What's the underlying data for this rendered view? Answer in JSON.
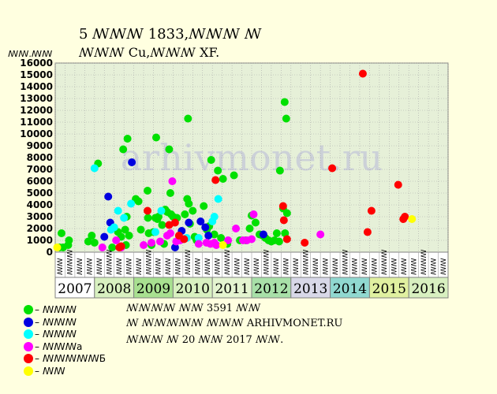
{
  "title": {
    "line1": "5 ꟿꟿꟿ 1833,ꟿꟿꟿ ꟿ",
    "line2": "ꟿꟿꟿ Cu,ꟿꟿꟿ XF."
  },
  "watermark": "arhivmonet.ru",
  "info": {
    "line1": "ꟿꟿꟿꟿ ꟿꟿ 3591 ꟿꟿ",
    "line2": "ꟿ ꟿꟿꟿꟿꟿ ꟿꟿꟿ ARHIVMONET.RU",
    "line3": "ꟿꟿꟿ ꟿ 20 ꟿꟿ 2017 ꟿꟿ."
  },
  "chart_data": {
    "type": "scatter",
    "ylabel": "ꟿꟿ.ꟿꟿ",
    "ylim": [
      0,
      16000
    ],
    "yticks": [
      0,
      1000,
      2000,
      3000,
      4000,
      5000,
      6000,
      7000,
      8000,
      9000,
      10000,
      11000,
      12000,
      13000,
      14000,
      15000,
      16000
    ],
    "grid": true,
    "legend_position": "bottom-left",
    "colors": {
      "plot_background": "#e6f0d8",
      "page_background": "#ffffe0",
      "grid": "#a8a8a8"
    },
    "quarter_labels": [
      "ꟿꟿ",
      "ꟿꟿꟿ",
      "ꟿꟿ",
      "ꟿꟿ"
    ],
    "years": [
      {
        "label": "2007",
        "color": "#ffffff"
      },
      {
        "label": "2008",
        "color": "#d8f0c0"
      },
      {
        "label": "2009",
        "color": "#a8e090"
      },
      {
        "label": "2010",
        "color": "#d8f0c0"
      },
      {
        "label": "2011",
        "color": "#e4f4d0"
      },
      {
        "label": "2012",
        "color": "#a8e0a8"
      },
      {
        "label": "2013",
        "color": "#d8d8e8"
      },
      {
        "label": "2014",
        "color": "#90d8d0"
      },
      {
        "label": "2015",
        "color": "#e0f0a0"
      },
      {
        "label": "2016",
        "color": "#d8f0c0"
      }
    ],
    "series": [
      {
        "name": "ꟿ ꟿꟿꟿ",
        "color": "#00e000",
        "points": [
          [
            2007.11,
            400
          ],
          [
            2007.16,
            1600
          ],
          [
            2007.2,
            400
          ],
          [
            2007.33,
            600
          ],
          [
            2007.35,
            1000
          ],
          [
            2007.84,
            900
          ],
          [
            2007.93,
            1400
          ],
          [
            2008.0,
            800
          ],
          [
            2008.09,
            7500
          ],
          [
            2008.45,
            400
          ],
          [
            2008.6,
            1700
          ],
          [
            2008.68,
            1300
          ],
          [
            2008.73,
            8700
          ],
          [
            2008.78,
            1900
          ],
          [
            2008.82,
            3000
          ],
          [
            2008.84,
            9600
          ],
          [
            2008.88,
            1400
          ],
          [
            2008.8,
            600
          ],
          [
            2009.05,
            4500
          ],
          [
            2009.12,
            4300
          ],
          [
            2009.18,
            1900
          ],
          [
            2009.35,
            5200
          ],
          [
            2009.36,
            2900
          ],
          [
            2009.38,
            1600
          ],
          [
            2009.45,
            600
          ],
          [
            2009.5,
            1700
          ],
          [
            2009.55,
            2900
          ],
          [
            2009.57,
            9700
          ],
          [
            2009.6,
            2800
          ],
          [
            2009.63,
            3000
          ],
          [
            2009.72,
            2300
          ],
          [
            2009.77,
            700
          ],
          [
            2009.8,
            3600
          ],
          [
            2009.85,
            3400
          ],
          [
            2009.9,
            8700
          ],
          [
            2009.93,
            5000
          ],
          [
            2009.95,
            3200
          ],
          [
            2010.0,
            3000
          ],
          [
            2010.1,
            2900
          ],
          [
            2010.3,
            3200
          ],
          [
            2010.36,
            4500
          ],
          [
            2010.38,
            11300
          ],
          [
            2010.4,
            4100
          ],
          [
            2010.43,
            2400
          ],
          [
            2010.5,
            3500
          ],
          [
            2010.55,
            1300
          ],
          [
            2010.6,
            1000
          ],
          [
            2010.78,
            3900
          ],
          [
            2010.86,
            1900
          ],
          [
            2010.92,
            2200
          ],
          [
            2010.97,
            7800
          ],
          [
            2011.05,
            1500
          ],
          [
            2011.14,
            6900
          ],
          [
            2011.22,
            1200
          ],
          [
            2011.27,
            6200
          ],
          [
            2011.38,
            700
          ],
          [
            2011.55,
            6500
          ],
          [
            2011.7,
            1000
          ],
          [
            2011.85,
            1000
          ],
          [
            2011.95,
            2000
          ],
          [
            2012.0,
            3100
          ],
          [
            2012.1,
            2500
          ],
          [
            2012.2,
            1500
          ],
          [
            2012.28,
            1400
          ],
          [
            2012.35,
            1200
          ],
          [
            2012.43,
            1000
          ],
          [
            2012.5,
            900
          ],
          [
            2012.58,
            1000
          ],
          [
            2012.64,
            1600
          ],
          [
            2012.7,
            900
          ],
          [
            2012.72,
            6900
          ],
          [
            2012.8,
            3700
          ],
          [
            2012.84,
            12700
          ],
          [
            2012.88,
            11300
          ],
          [
            2012.9,
            3300
          ],
          [
            2012.85,
            1600
          ]
        ]
      },
      {
        "name": "ꟿ ꟿꟿꟿ",
        "color": "#0000e0",
        "points": [
          [
            2008.25,
            1300
          ],
          [
            2008.35,
            4700
          ],
          [
            2008.4,
            2500
          ],
          [
            2008.95,
            7600
          ],
          [
            2010.05,
            400
          ],
          [
            2010.22,
            1800
          ],
          [
            2010.4,
            2500
          ],
          [
            2010.7,
            2600
          ],
          [
            2010.82,
            2100
          ],
          [
            2010.9,
            1400
          ],
          [
            2012.3,
            1500
          ]
        ]
      },
      {
        "name": "ꟿ ꟿꟿꟿ",
        "color": "#00ffff",
        "points": [
          [
            2008.0,
            7100
          ],
          [
            2008.42,
            1900
          ],
          [
            2008.5,
            2100
          ],
          [
            2008.6,
            3500
          ],
          [
            2008.75,
            2900
          ],
          [
            2008.93,
            4100
          ],
          [
            2009.55,
            1700
          ],
          [
            2009.7,
            3500
          ],
          [
            2010.35,
            1200
          ],
          [
            2010.65,
            1200
          ],
          [
            2011.0,
            2600
          ],
          [
            2011.05,
            3000
          ],
          [
            2011.15,
            4500
          ]
        ]
      },
      {
        "name": "ꟿ ꟿꟿꟿa",
        "color": "#ff00ff",
        "points": [
          [
            2008.2,
            400
          ],
          [
            2008.55,
            1000
          ],
          [
            2008.68,
            400
          ],
          [
            2009.25,
            600
          ],
          [
            2009.45,
            800
          ],
          [
            2009.67,
            900
          ],
          [
            2009.85,
            1400
          ],
          [
            2009.93,
            1600
          ],
          [
            2009.98,
            6000
          ],
          [
            2010.08,
            900
          ],
          [
            2010.18,
            1000
          ],
          [
            2010.65,
            700
          ],
          [
            2010.85,
            800
          ],
          [
            2010.95,
            700
          ],
          [
            2011.05,
            800
          ],
          [
            2011.1,
            600
          ],
          [
            2011.4,
            1000
          ],
          [
            2011.6,
            2000
          ],
          [
            2011.78,
            1000
          ],
          [
            2011.88,
            1000
          ],
          [
            2012.0,
            1100
          ],
          [
            2012.05,
            3200
          ],
          [
            2013.75,
            1500
          ]
        ]
      },
      {
        "name": "ꟿ ꟿꟿꟿꟿꟿБ",
        "color": "#ff0000",
        "points": [
          [
            2008.63,
            400
          ],
          [
            2008.68,
            500
          ],
          [
            2009.35,
            3500
          ],
          [
            2009.9,
            2300
          ],
          [
            2010.05,
            2500
          ],
          [
            2010.15,
            1400
          ],
          [
            2010.28,
            1100
          ],
          [
            2011.08,
            6100
          ],
          [
            2012.8,
            3900
          ],
          [
            2012.82,
            2700
          ],
          [
            2012.9,
            1100
          ],
          [
            2013.35,
            800
          ],
          [
            2014.05,
            7100
          ],
          [
            2014.83,
            15100
          ],
          [
            2014.95,
            1700
          ],
          [
            2015.05,
            3500
          ],
          [
            2015.73,
            5700
          ],
          [
            2015.86,
            2800
          ],
          [
            2015.9,
            3000
          ]
        ]
      },
      {
        "name": "ꟿ ꟿꟿ",
        "color": "#ffff00",
        "points": [
          [
            2007.05,
            400
          ],
          [
            2011.27,
            600
          ],
          [
            2016.08,
            2800
          ]
        ]
      }
    ]
  }
}
